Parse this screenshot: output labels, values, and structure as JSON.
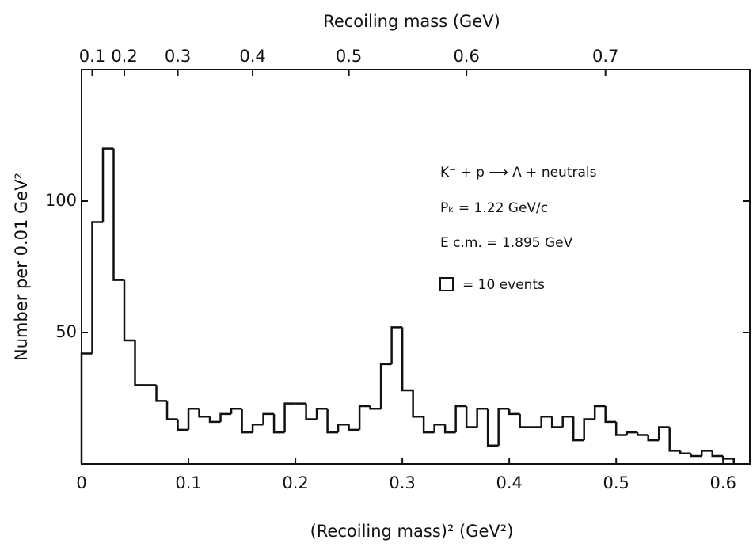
{
  "chart_data": {
    "type": "histogram",
    "x_label": "(Recoiling mass)² (GeV²)",
    "y_label": "Number per 0.01 GeV²",
    "x2_label": "Recoiling mass (GeV)",
    "annotations": [
      "K⁻ + p ⟶ Λ + neutrals",
      "Pₖ = 1.22 GeV/c",
      "E c.m. = 1.895 GeV",
      "= 10 events"
    ],
    "bins": [
      0,
      0.01,
      0.02,
      0.03,
      0.04,
      0.05,
      0.06,
      0.07,
      0.08,
      0.09,
      0.1,
      0.11,
      0.12,
      0.13,
      0.14,
      0.15,
      0.16,
      0.17,
      0.18,
      0.19,
      0.2,
      0.21,
      0.22,
      0.23,
      0.24,
      0.25,
      0.26,
      0.27,
      0.28,
      0.29,
      0.3,
      0.31,
      0.32,
      0.33,
      0.34,
      0.35,
      0.36,
      0.37,
      0.38,
      0.39,
      0.4,
      0.41,
      0.42,
      0.43,
      0.44,
      0.45,
      0.46,
      0.47,
      0.48,
      0.49,
      0.5,
      0.51,
      0.52,
      0.53,
      0.54,
      0.55,
      0.56,
      0.57,
      0.58,
      0.59,
      0.6,
      0.61
    ],
    "counts": [
      42,
      92,
      120,
      70,
      47,
      30,
      30,
      24,
      17,
      13,
      21,
      18,
      16,
      19,
      21,
      12,
      15,
      19,
      12,
      23,
      23,
      17,
      21,
      12,
      15,
      13,
      22,
      21,
      38,
      52,
      28,
      18,
      12,
      15,
      12,
      22,
      14,
      21,
      7,
      21,
      19,
      14,
      14,
      18,
      14,
      18,
      9,
      17,
      22,
      16,
      11,
      12,
      11,
      9,
      14,
      5,
      4,
      3,
      5,
      3,
      2
    ],
    "color": "#111111",
    "xlim": [
      0,
      0.625
    ],
    "ylim": [
      0,
      150
    ],
    "xticks": [
      0,
      0.1,
      0.2,
      0.3,
      0.4,
      0.5,
      0.6
    ],
    "yticks": [
      50,
      100
    ],
    "x2ticks": [
      0.1,
      0.2,
      0.3,
      0.4,
      0.5,
      0.6,
      0.7
    ]
  }
}
